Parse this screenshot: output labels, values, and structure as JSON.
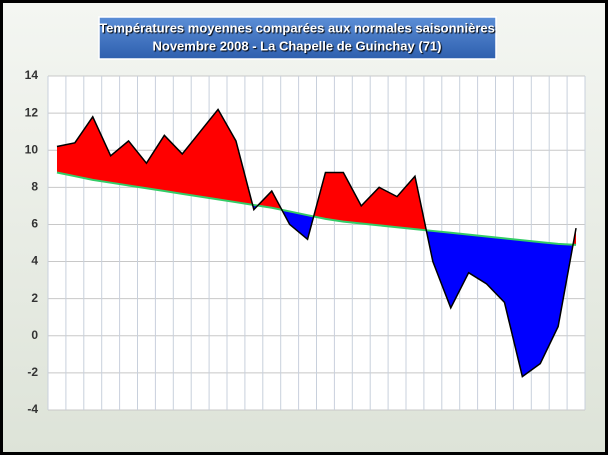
{
  "chart_data": {
    "type": "area_vs_normal",
    "title": "Températures moyennes comparées aux normales saisonnières",
    "subtitle": "Novembre 2008 - La Chapelle de Guinchay (71)",
    "series": [
      {
        "color": "#000000",
        "values": [
          10.2,
          10.4,
          11.8,
          9.7,
          10.5,
          9.3,
          10.8,
          9.8,
          11.0,
          12.2,
          10.5,
          6.8,
          7.8,
          6.0,
          5.2,
          8.8,
          8.8,
          7.0,
          8.0,
          7.5,
          8.6,
          4.0,
          1.5,
          3.4,
          2.8,
          1.8,
          -2.2,
          -1.5,
          0.5,
          5.8
        ]
      },
      {
        "color": "#33cc66",
        "values": [
          8.8,
          8.6,
          8.4,
          8.25,
          8.1,
          7.95,
          7.8,
          7.65,
          7.5,
          7.35,
          7.2,
          7.05,
          6.9,
          6.7,
          6.5,
          6.3,
          6.15,
          6.05,
          5.95,
          5.85,
          5.75,
          5.65,
          5.55,
          5.45,
          5.35,
          5.25,
          5.15,
          5.05,
          4.95,
          4.9
        ]
      }
    ],
    "above_color": "#ff0000",
    "below_color": "#0000ff",
    "ylim": [
      -4,
      14
    ],
    "yticks": [
      -4,
      -2,
      0,
      2,
      4,
      6,
      8,
      10,
      12,
      14
    ],
    "grid": true
  }
}
